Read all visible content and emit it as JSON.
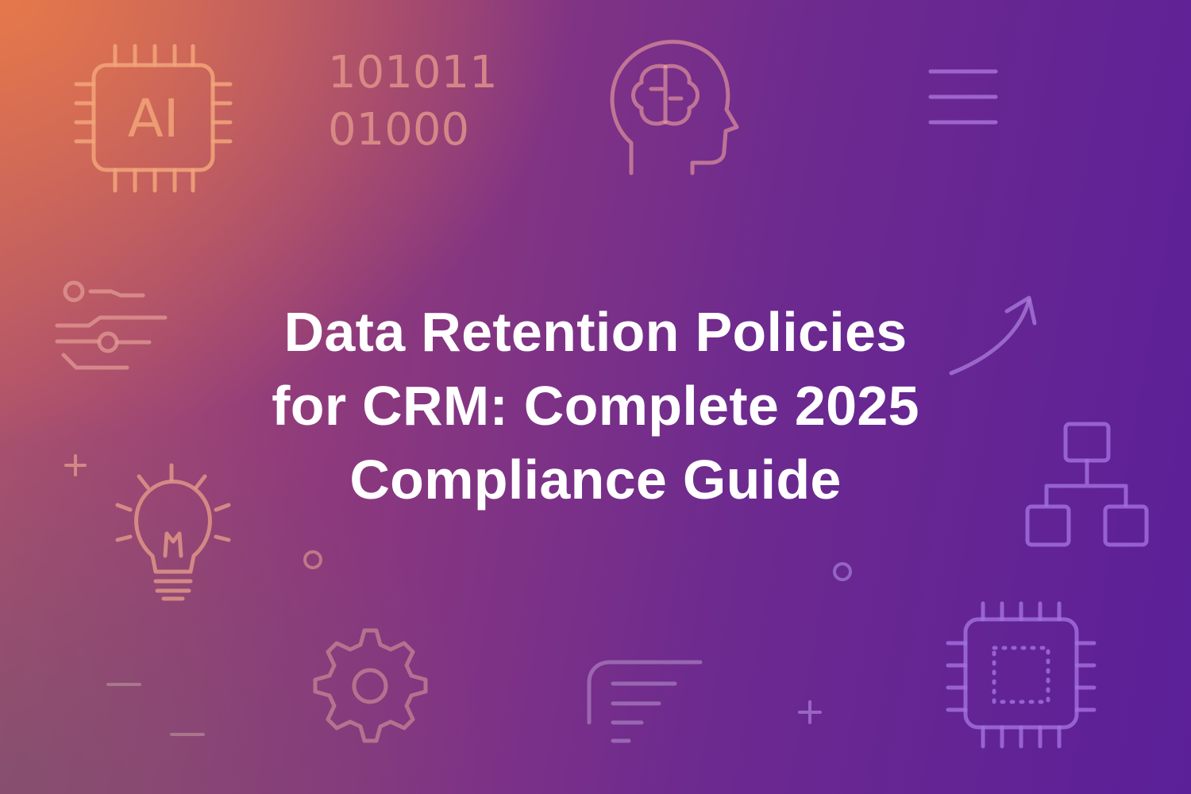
{
  "title_lines": [
    "Data Retention Policies",
    "for CRM: Complete 2025",
    "Compliance Guide"
  ],
  "binary_lines": [
    "101011",
    "01000"
  ],
  "chip_label": "AI",
  "icons": [
    "ai-chip-icon",
    "binary-code-icon",
    "brain-head-icon",
    "menu-lines-icon",
    "sliders-icon",
    "trend-arrow-icon",
    "plus-icon",
    "lightbulb-icon",
    "circle-icon",
    "hierarchy-icon",
    "gear-icon",
    "document-icon",
    "cpu-chip-icon",
    "minus-icon"
  ],
  "colors": {
    "background_start": "#e87a48",
    "background_mid": "#8e3a7c",
    "background_end": "#5b1f98",
    "title_text": "#ffffff",
    "icon_warm": "#f2a57a",
    "icon_cool": "#a070d8"
  }
}
